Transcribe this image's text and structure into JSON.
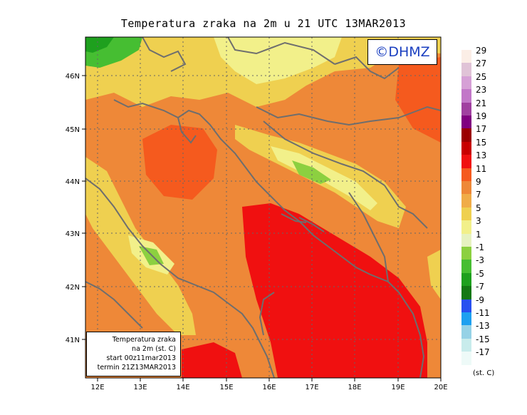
{
  "title": "Temperatura zraka na 2m u 21 UTC 13MAR2013",
  "copyright": "©DHMZ",
  "info_box": {
    "line1": "Temperatura zraka",
    "line2": "na 2m (st. C)",
    "line3": "start 00z11mar2013",
    "line4": "termin 21Z13MAR2013"
  },
  "x_ticks": [
    "12E",
    "13E",
    "14E",
    "15E",
    "16E",
    "17E",
    "18E",
    "19E",
    "20E"
  ],
  "y_ticks": [
    "46N",
    "45N",
    "44N",
    "43N",
    "42N",
    "41N"
  ],
  "legend": {
    "unit": "(st. C)",
    "labels": [
      "29",
      "27",
      "25",
      "23",
      "21",
      "19",
      "17",
      "15",
      "13",
      "11",
      "9",
      "7",
      "5",
      "3",
      "1",
      "-1",
      "-3",
      "-5",
      "-7",
      "-9",
      "-11",
      "-13",
      "-15",
      "-17"
    ],
    "colors": [
      "#fbeee6",
      "#e0c3d7",
      "#d6a0d6",
      "#c277c8",
      "#a040a0",
      "#800080",
      "#9b0000",
      "#c80000",
      "#f01010",
      "#f55a1e",
      "#ee8838",
      "#f0ac48",
      "#efd050",
      "#f2f08a",
      "#e6f2c0",
      "#8cd040",
      "#46be32",
      "#1ea01e",
      "#147814",
      "#2850f0",
      "#1ea0f0",
      "#96d2e6",
      "#c8ecec",
      "#eefaf8"
    ]
  },
  "colors": {
    "coast": "#6e6e6e",
    "grid": "#666666"
  }
}
